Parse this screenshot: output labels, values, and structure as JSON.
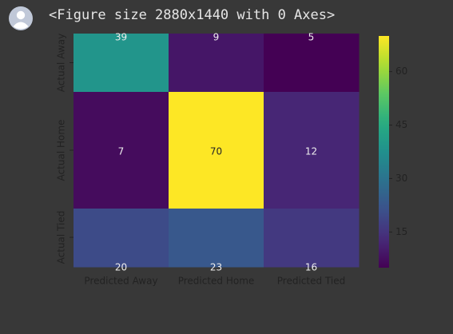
{
  "output_cell": {
    "figure_text": "<Figure size 2880x1440 with 0 Axes>"
  },
  "chart_data": {
    "type": "heatmap",
    "row_labels": [
      "Actual Away",
      "Actual Home",
      "Actual Tied"
    ],
    "col_labels": [
      "Predicted Away",
      "Predicted Home",
      "Predicted Tied"
    ],
    "values": [
      [
        39,
        9,
        5
      ],
      [
        7,
        70,
        12
      ],
      [
        20,
        23,
        16
      ]
    ],
    "colormap": "viridis",
    "colorbar": {
      "ticks": [
        "15",
        "30",
        "45",
        "60"
      ],
      "range": [
        5,
        70
      ]
    }
  }
}
